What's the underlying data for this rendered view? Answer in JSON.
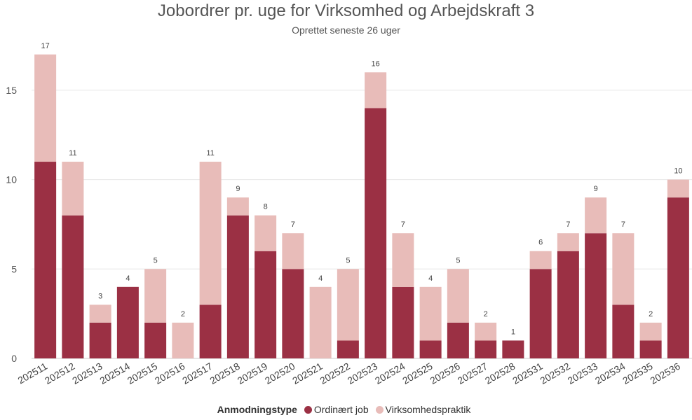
{
  "chart_data": {
    "type": "bar",
    "stacked": true,
    "title": "Jobordrer pr. uge for Virksomhed og Arbejdskraft 3",
    "subtitle": "Oprettet seneste 26 uger",
    "categories": [
      "202511",
      "202512",
      "202513",
      "202514",
      "202515",
      "202516",
      "202517",
      "202518",
      "202519",
      "202520",
      "202521",
      "202522",
      "202523",
      "202524",
      "202525",
      "202526",
      "202527",
      "202528",
      "202531",
      "202532",
      "202533",
      "202534",
      "202535",
      "202536"
    ],
    "series": [
      {
        "name": "Ordinært job",
        "color": "#9b3044",
        "values": [
          11,
          8,
          2,
          4,
          2,
          0,
          3,
          8,
          6,
          5,
          0,
          1,
          14,
          4,
          1,
          2,
          1,
          1,
          5,
          6,
          7,
          3,
          1,
          9
        ]
      },
      {
        "name": "Virksomhedspraktik",
        "color": "#e8bcb9",
        "values": [
          6,
          3,
          1,
          0,
          3,
          2,
          8,
          1,
          2,
          2,
          4,
          4,
          2,
          3,
          3,
          3,
          1,
          0,
          1,
          1,
          2,
          4,
          1,
          1
        ]
      }
    ],
    "totals": [
      17,
      11,
      3,
      4,
      5,
      2,
      11,
      9,
      8,
      7,
      4,
      5,
      16,
      7,
      4,
      5,
      2,
      1,
      6,
      7,
      9,
      7,
      2,
      10
    ],
    "y_ticks": [
      0,
      5,
      10,
      15
    ],
    "ylim": [
      0,
      17.5
    ],
    "grid": true,
    "legend": {
      "title": "Anmodningstype",
      "position": "bottom"
    }
  }
}
